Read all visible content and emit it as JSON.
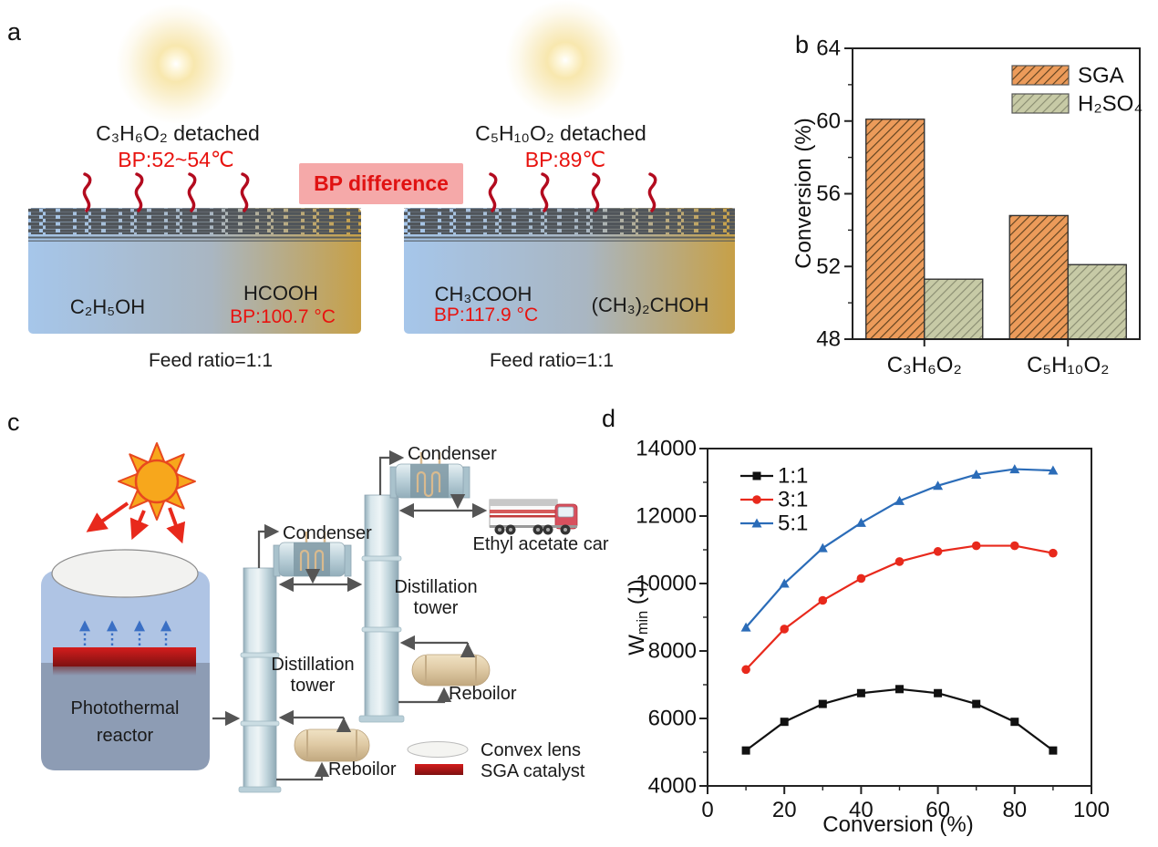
{
  "panels": {
    "a": {
      "label": "a",
      "bp_difference_badge": "BP difference",
      "left_surface": {
        "detached": "C₃H₆O₂ detached",
        "bp": "BP:52~54℃",
        "solvent_left": "C₂H₅OH",
        "solvent_right": "HCOOH",
        "solvent_right_bp": "BP:100.7 °C",
        "feed": "Feed ratio=1:1"
      },
      "right_surface": {
        "detached": "C₅H₁₀O₂ detached",
        "bp": "BP:89℃",
        "solvent_left": "CH₃COOH",
        "solvent_left_bp": "BP:117.9 °C",
        "solvent_right": "(CH₃)₂CHOH",
        "feed": "Feed ratio=1:1"
      },
      "accent_colors": {
        "bp_text_red": "#E8130F",
        "badge_bg": "#F5A9A9",
        "molecule_squiggle": "#B30B1F"
      }
    },
    "b": {
      "label": "b",
      "ylabel": "Conversion (%)"
    },
    "c": {
      "label": "c",
      "reactor_label_line1": "Photothermal",
      "reactor_label_line2": "reactor",
      "condenser_label": "Condenser",
      "tower_label_line1": "Distillation",
      "tower_label_line2": "tower",
      "reboiler_label": "Reboilor",
      "truck_label": "Ethyl acetate car",
      "legend_lens": "Convex lens",
      "legend_catalyst": "SGA catalyst"
    },
    "d": {
      "label": "d",
      "xlabel": "Conversion (%)",
      "ylabel_main": "W",
      "ylabel_sub": "min",
      "ylabel_unit": " (J)"
    }
  },
  "chart_data": [
    {
      "id": "b",
      "type": "bar",
      "title": "",
      "ylabel": "Conversion (%)",
      "categories": [
        "C₃H₆O₂",
        "C₅H₁₀O₂"
      ],
      "series": [
        {
          "name": "SGA",
          "values": [
            60.1,
            54.8
          ],
          "fill": "#EC9B5A",
          "hatch": "#5f421f"
        },
        {
          "name": "H₂SO₄",
          "values": [
            51.3,
            52.1
          ],
          "fill": "#C7CAA6",
          "hatch": "#8a8d72"
        }
      ],
      "ylim": [
        48,
        64
      ],
      "yticks": [
        48,
        52,
        56,
        60,
        64
      ],
      "y_minor_step": 2,
      "legend_position": "top-right",
      "grid": false
    },
    {
      "id": "d",
      "type": "line",
      "xlabel": "Conversion (%)",
      "ylabel": "Wmin (J)",
      "x": [
        10,
        20,
        30,
        40,
        50,
        60,
        70,
        80,
        90
      ],
      "series": [
        {
          "name": "1:1",
          "color": "#111111",
          "marker": "square",
          "values": [
            5050,
            5900,
            6430,
            6750,
            6870,
            6750,
            6430,
            5900,
            5050
          ]
        },
        {
          "name": "3:1",
          "color": "#E8291C",
          "marker": "circle",
          "values": [
            7450,
            8650,
            9500,
            10150,
            10650,
            10950,
            11120,
            11120,
            10900
          ]
        },
        {
          "name": "5:1",
          "color": "#2B6CB8",
          "marker": "triangle",
          "values": [
            8700,
            10000,
            11050,
            11800,
            12450,
            12900,
            13230,
            13390,
            13350
          ]
        }
      ],
      "xlim": [
        0,
        100
      ],
      "xticks": [
        0,
        20,
        40,
        60,
        80,
        100
      ],
      "x_minor_step": 10,
      "ylim": [
        4000,
        14000
      ],
      "yticks": [
        4000,
        6000,
        8000,
        10000,
        12000,
        14000
      ],
      "y_minor_step": 1000,
      "legend_position": "top-left",
      "grid": false
    }
  ]
}
